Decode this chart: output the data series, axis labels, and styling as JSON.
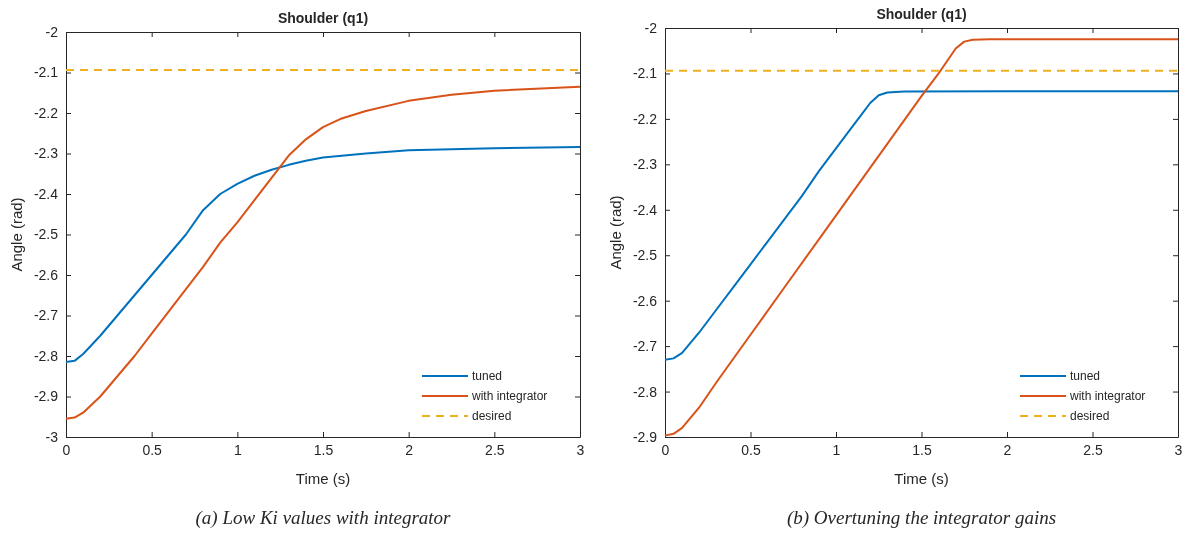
{
  "chart_data": [
    {
      "type": "line",
      "title": "Shoulder (q1)",
      "xlabel": "Time (s)",
      "ylabel": "Angle (rad)",
      "annotations": [
        "(a) Low Ki values with integrator"
      ],
      "xlim": [
        0,
        3
      ],
      "ylim": [
        -3,
        -2
      ],
      "xticks": [
        0,
        0.5,
        1,
        1.5,
        2,
        2.5,
        3
      ],
      "yticks": [
        -3,
        -2.9,
        -2.8,
        -2.7,
        -2.6,
        -2.5,
        -2.4,
        -2.3,
        -2.2,
        -2.1,
        -2
      ],
      "grid": false,
      "legend": "bottom right",
      "series": [
        {
          "name": "tuned",
          "color": "#0072bd",
          "line_style": "solid",
          "x": [
            0,
            0.05,
            0.1,
            0.2,
            0.3,
            0.4,
            0.5,
            0.6,
            0.7,
            0.8,
            0.9,
            1,
            1.1,
            1.2,
            1.3,
            1.4,
            1.5,
            1.75,
            2,
            2.5,
            3
          ],
          "values": [
            -2.815,
            -2.812,
            -2.795,
            -2.75,
            -2.7,
            -2.65,
            -2.6,
            -2.55,
            -2.5,
            -2.44,
            -2.4,
            -2.375,
            -2.355,
            -2.34,
            -2.328,
            -2.318,
            -2.31,
            -2.3,
            -2.292,
            -2.287,
            -2.284
          ]
        },
        {
          "name": "with integrator",
          "color": "#d95319",
          "line_style": "solid",
          "x": [
            0,
            0.05,
            0.1,
            0.2,
            0.3,
            0.4,
            0.5,
            0.6,
            0.7,
            0.8,
            0.9,
            1,
            1.1,
            1.2,
            1.3,
            1.4,
            1.5,
            1.6,
            1.75,
            2,
            2.25,
            2.5,
            3
          ],
          "values": [
            -2.955,
            -2.952,
            -2.94,
            -2.9,
            -2.85,
            -2.8,
            -2.745,
            -2.69,
            -2.635,
            -2.58,
            -2.52,
            -2.47,
            -2.415,
            -2.36,
            -2.305,
            -2.265,
            -2.235,
            -2.215,
            -2.195,
            -2.17,
            -2.155,
            -2.145,
            -2.135
          ]
        },
        {
          "name": "desired",
          "color": "#edb120",
          "line_style": "dashed",
          "x": [
            0,
            3
          ],
          "values": [
            -2.094,
            -2.094
          ]
        }
      ]
    },
    {
      "type": "line",
      "title": "Shoulder (q1)",
      "xlabel": "Time (s)",
      "ylabel": "Angle (rad)",
      "annotations": [
        "(b) Overtuning the integrator gains"
      ],
      "xlim": [
        0,
        3
      ],
      "ylim": [
        -2.9,
        -2
      ],
      "xticks": [
        0,
        0.5,
        1,
        1.5,
        2,
        2.5,
        3
      ],
      "yticks": [
        -2.9,
        -2.8,
        -2.7,
        -2.6,
        -2.5,
        -2.4,
        -2.3,
        -2.2,
        -2.1,
        -2
      ],
      "grid": false,
      "legend": "bottom right",
      "series": [
        {
          "name": "tuned",
          "color": "#0072bd",
          "line_style": "solid",
          "x": [
            0,
            0.05,
            0.1,
            0.2,
            0.3,
            0.4,
            0.5,
            0.6,
            0.7,
            0.8,
            0.9,
            1,
            1.1,
            1.15,
            1.2,
            1.25,
            1.3,
            1.4,
            2,
            3
          ],
          "values": [
            -2.73,
            -2.727,
            -2.715,
            -2.67,
            -2.62,
            -2.57,
            -2.52,
            -2.47,
            -2.42,
            -2.37,
            -2.315,
            -2.265,
            -2.215,
            -2.19,
            -2.165,
            -2.148,
            -2.142,
            -2.14,
            -2.139,
            -2.139
          ]
        },
        {
          "name": "with integrator",
          "color": "#d95319",
          "line_style": "solid",
          "x": [
            0,
            0.05,
            0.1,
            0.2,
            0.3,
            0.5,
            0.7,
            0.9,
            1.1,
            1.3,
            1.5,
            1.6,
            1.7,
            1.75,
            1.8,
            1.9,
            3
          ],
          "values": [
            -2.897,
            -2.893,
            -2.88,
            -2.835,
            -2.78,
            -2.675,
            -2.57,
            -2.465,
            -2.36,
            -2.255,
            -2.15,
            -2.1,
            -2.045,
            -2.03,
            -2.026,
            -2.025,
            -2.025
          ]
        },
        {
          "name": "desired",
          "color": "#edb120",
          "line_style": "dashed",
          "x": [
            0,
            3
          ],
          "values": [
            -2.094,
            -2.094
          ]
        }
      ]
    }
  ]
}
